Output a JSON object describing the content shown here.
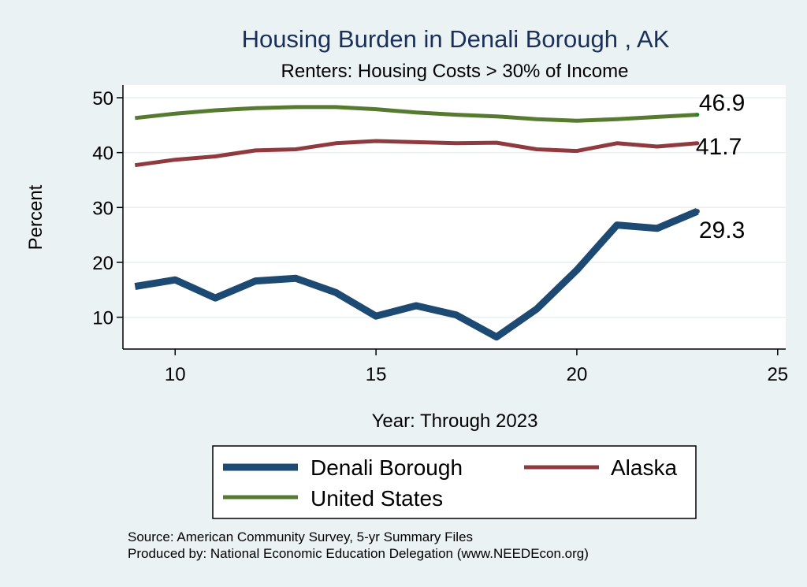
{
  "chart_data": {
    "type": "line",
    "title": "Housing Burden in Denali Borough , AK",
    "subtitle": "Renters: Housing Costs > 30% of Income",
    "xlabel": "Year: Through 2023",
    "ylabel": "Percent",
    "xlim": [
      8.7,
      25.2
    ],
    "ylim": [
      4.2,
      52.3
    ],
    "x_ticks": [
      "10",
      "15",
      "20",
      "25"
    ],
    "y_ticks": [
      "10",
      "20",
      "30",
      "40",
      "50"
    ],
    "grid": true,
    "x": [
      9,
      10,
      11,
      12,
      13,
      14,
      15,
      16,
      17,
      18,
      19,
      20,
      21,
      22,
      23
    ],
    "series": [
      {
        "name": "Denali Borough",
        "color": "#1d4a72",
        "values": [
          15.6,
          16.8,
          13.5,
          16.6,
          17.1,
          14.5,
          10.2,
          12.1,
          10.4,
          6.4,
          11.5,
          18.6,
          26.8,
          26.2,
          29.3
        ],
        "end_label": "29.3"
      },
      {
        "name": "Alaska",
        "color": "#8f3a3e",
        "values": [
          37.7,
          38.7,
          39.3,
          40.4,
          40.6,
          41.7,
          42.1,
          41.9,
          41.7,
          41.8,
          40.6,
          40.3,
          41.7,
          41.1,
          41.7
        ],
        "end_label": "41.7"
      },
      {
        "name": "United States",
        "color": "#557a30",
        "values": [
          46.3,
          47.1,
          47.7,
          48.1,
          48.3,
          48.3,
          47.9,
          47.3,
          46.9,
          46.6,
          46.1,
          45.8,
          46.1,
          46.5,
          46.9
        ],
        "end_label": "46.9"
      }
    ],
    "legend_position": "bottom"
  },
  "notes": {
    "source": "Source: American Community Survey, 5-yr Summary Files",
    "produced": "Produced by: National Economic Education Delegation (www.NEEDEcon.org)"
  }
}
